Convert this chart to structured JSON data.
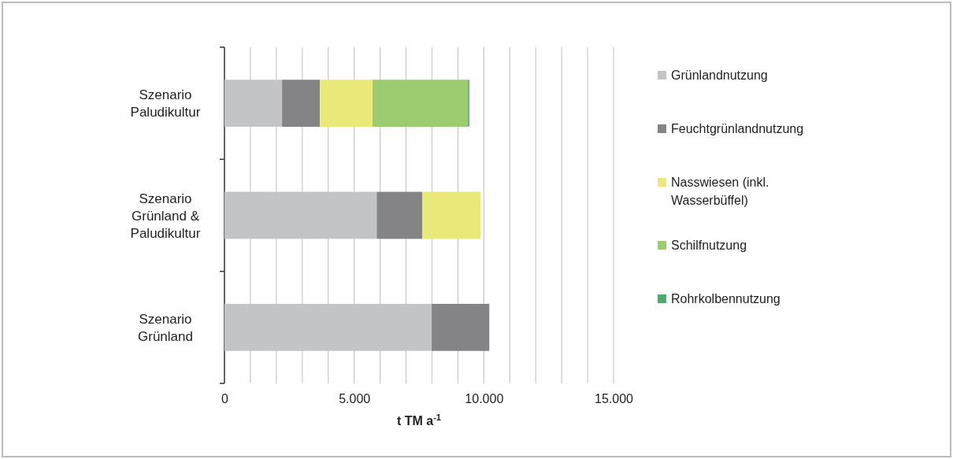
{
  "chart_data": {
    "type": "bar",
    "orientation": "horizontal",
    "stacked": true,
    "categories": [
      "Szenario Paludikultur",
      "Szenario Grünland & Paludikultur",
      "Szenario Grünland"
    ],
    "series": [
      {
        "name": "Grünlandnutzung",
        "color": "#c3c4c6",
        "values": [
          2220,
          5870,
          7990
        ]
      },
      {
        "name": "Feuchtgrünlandnutzung",
        "color": "#848487",
        "values": [
          1460,
          1760,
          2220
        ]
      },
      {
        "name": "Nasswiesen (inkl. Wasserbüffel)",
        "color": "#e9e97a",
        "values": [
          2030,
          2250,
          null
        ]
      },
      {
        "name": "Schilfnutzung",
        "color": "#9ccc6f",
        "values": [
          3680,
          null,
          null
        ]
      },
      {
        "name": "Rohrkolbennutzung",
        "color": "#4daa6a",
        "values": [
          50,
          null,
          null
        ]
      }
    ],
    "xlabel": "t TM a$^{-1}$",
    "xlim": [
      0,
      15000
    ],
    "xticks": [
      0,
      {
        "value": 1000,
        "label": null
      },
      {
        "value": 2000,
        "label": null
      },
      {
        "value": 3000,
        "label": null
      },
      {
        "value": 4000,
        "label": null
      },
      {
        "value": 5000,
        "label": "5.000"
      },
      {
        "value": 6000,
        "label": null
      },
      {
        "value": 7000,
        "label": null
      },
      {
        "value": 8000,
        "label": null
      },
      {
        "value": 9000,
        "label": null
      },
      {
        "value": 10000,
        "label": "10.000"
      },
      {
        "value": 11000,
        "label": null
      },
      {
        "value": 12000,
        "label": null
      },
      {
        "value": 13000,
        "label": null
      },
      {
        "value": 14000,
        "label": null
      },
      {
        "value": 15000,
        "label": "15.000"
      }
    ],
    "grid": "x",
    "legend": "right"
  }
}
